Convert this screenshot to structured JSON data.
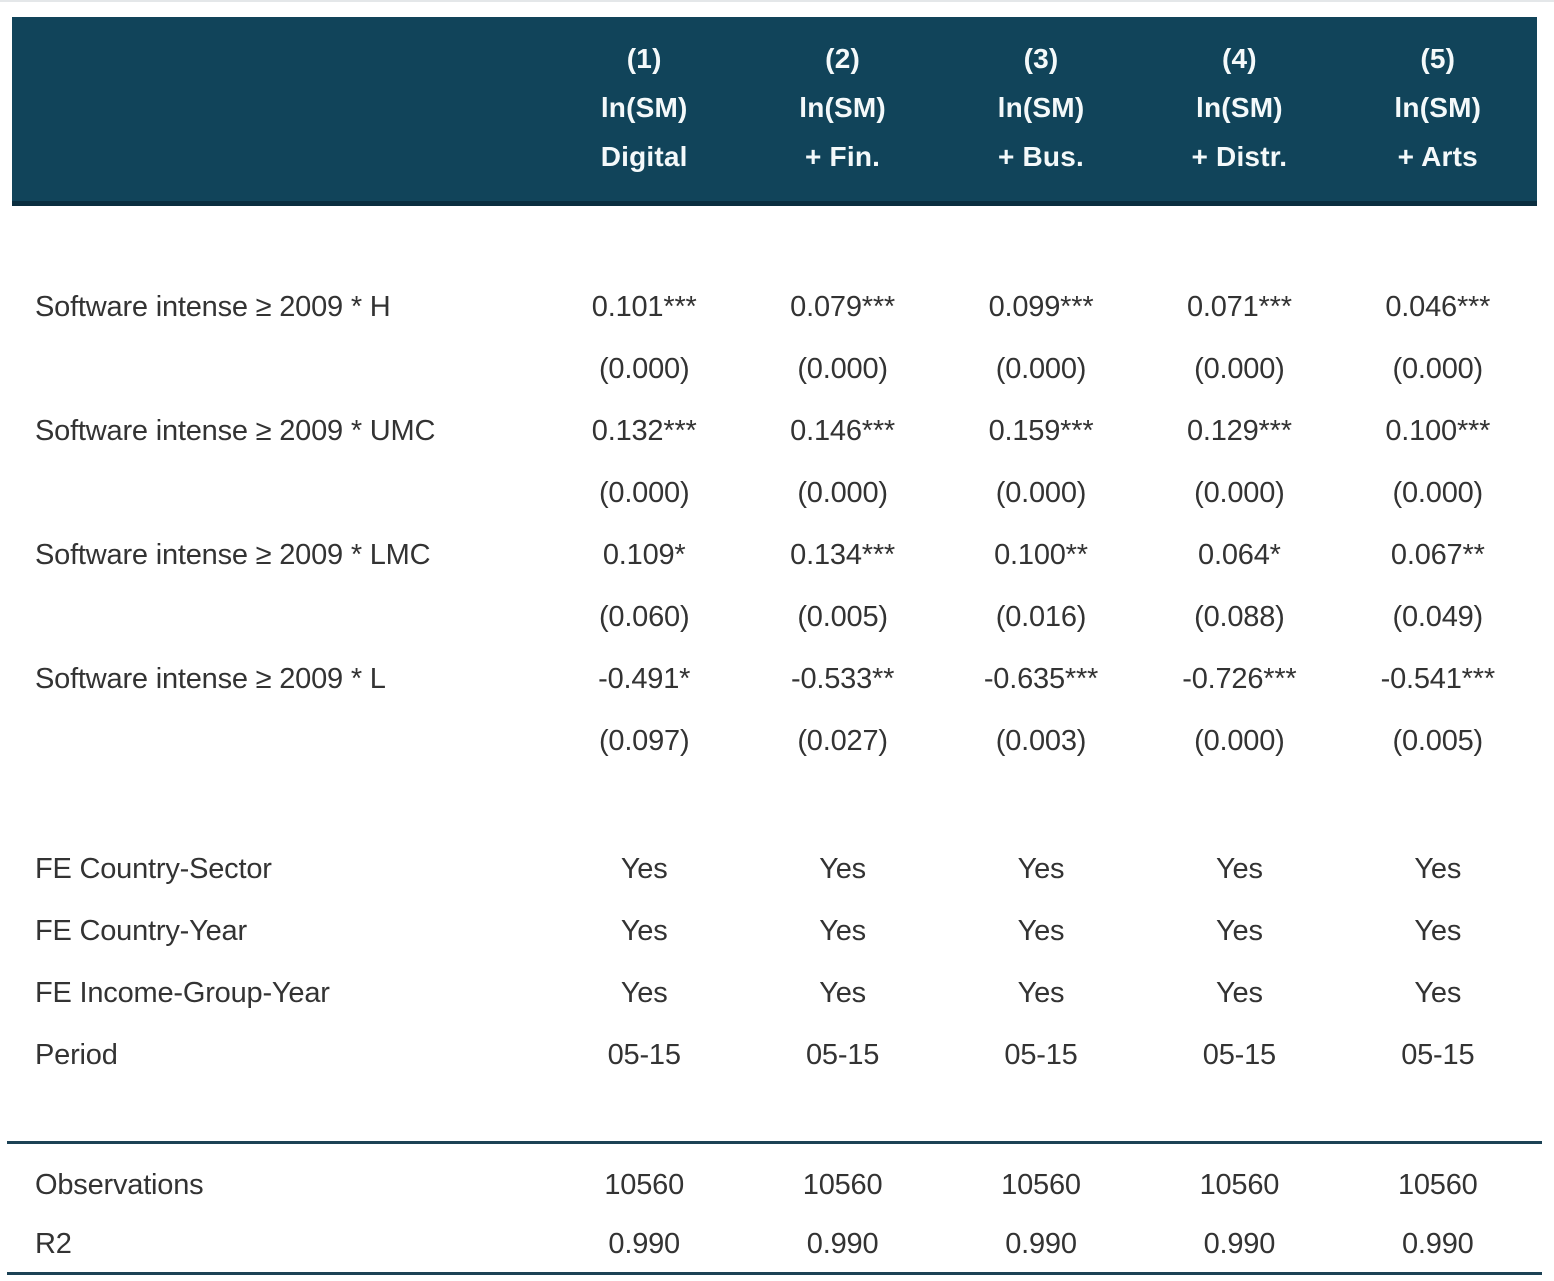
{
  "colors": {
    "header_bg": "#11445a",
    "header_bottom_border": "#0a2e3f",
    "header_text": "#f4f9fa",
    "body_text": "#333333",
    "rule": "#1c4255"
  },
  "header": {
    "columns": [
      {
        "number": "(1)",
        "depvar": "ln(SM)",
        "model": "Digital"
      },
      {
        "number": "(2)",
        "depvar": "ln(SM)",
        "model": "+ Fin."
      },
      {
        "number": "(3)",
        "depvar": "ln(SM)",
        "model": "+ Bus."
      },
      {
        "number": "(4)",
        "depvar": "ln(SM)",
        "model": "+ Distr."
      },
      {
        "number": "(5)",
        "depvar": "ln(SM)",
        "model": "+ Arts"
      }
    ]
  },
  "coefficients": [
    {
      "label": "Software intense ≥ 2009 * H",
      "estimates": [
        "0.101***",
        "0.079***",
        "0.099***",
        "0.071***",
        "0.046***"
      ],
      "pvalues": [
        "(0.000)",
        "(0.000)",
        "(0.000)",
        "(0.000)",
        "(0.000)"
      ]
    },
    {
      "label": "Software intense ≥ 2009 * UMC",
      "estimates": [
        "0.132***",
        "0.146***",
        "0.159***",
        "0.129***",
        "0.100***"
      ],
      "pvalues": [
        "(0.000)",
        "(0.000)",
        "(0.000)",
        "(0.000)",
        "(0.000)"
      ]
    },
    {
      "label": "Software intense ≥ 2009 * LMC",
      "estimates": [
        "0.109*",
        "0.134***",
        "0.100**",
        "0.064*",
        "0.067**"
      ],
      "pvalues": [
        "(0.060)",
        "(0.005)",
        "(0.016)",
        "(0.088)",
        "(0.049)"
      ]
    },
    {
      "label": "Software intense ≥ 2009 * L",
      "estimates": [
        "-0.491*",
        "-0.533**",
        "-0.635***",
        "-0.726***",
        "-0.541***"
      ],
      "pvalues": [
        "(0.097)",
        "(0.027)",
        "(0.003)",
        "(0.000)",
        "(0.005)"
      ]
    }
  ],
  "fixed_effects": [
    {
      "label": "FE Country-Sector",
      "values": [
        "Yes",
        "Yes",
        "Yes",
        "Yes",
        "Yes"
      ]
    },
    {
      "label": "FE Country-Year",
      "values": [
        "Yes",
        "Yes",
        "Yes",
        "Yes",
        "Yes"
      ]
    },
    {
      "label": "FE Income-Group-Year",
      "values": [
        "Yes",
        "Yes",
        "Yes",
        "Yes",
        "Yes"
      ]
    },
    {
      "label": "Period",
      "values": [
        "05-15",
        "05-15",
        "05-15",
        "05-15",
        "05-15"
      ]
    }
  ],
  "statistics": [
    {
      "label": "Observations",
      "values": [
        "10560",
        "10560",
        "10560",
        "10560",
        "10560"
      ]
    },
    {
      "label": "R2",
      "values": [
        "0.990",
        "0.990",
        "0.990",
        "0.990",
        "0.990"
      ]
    }
  ]
}
